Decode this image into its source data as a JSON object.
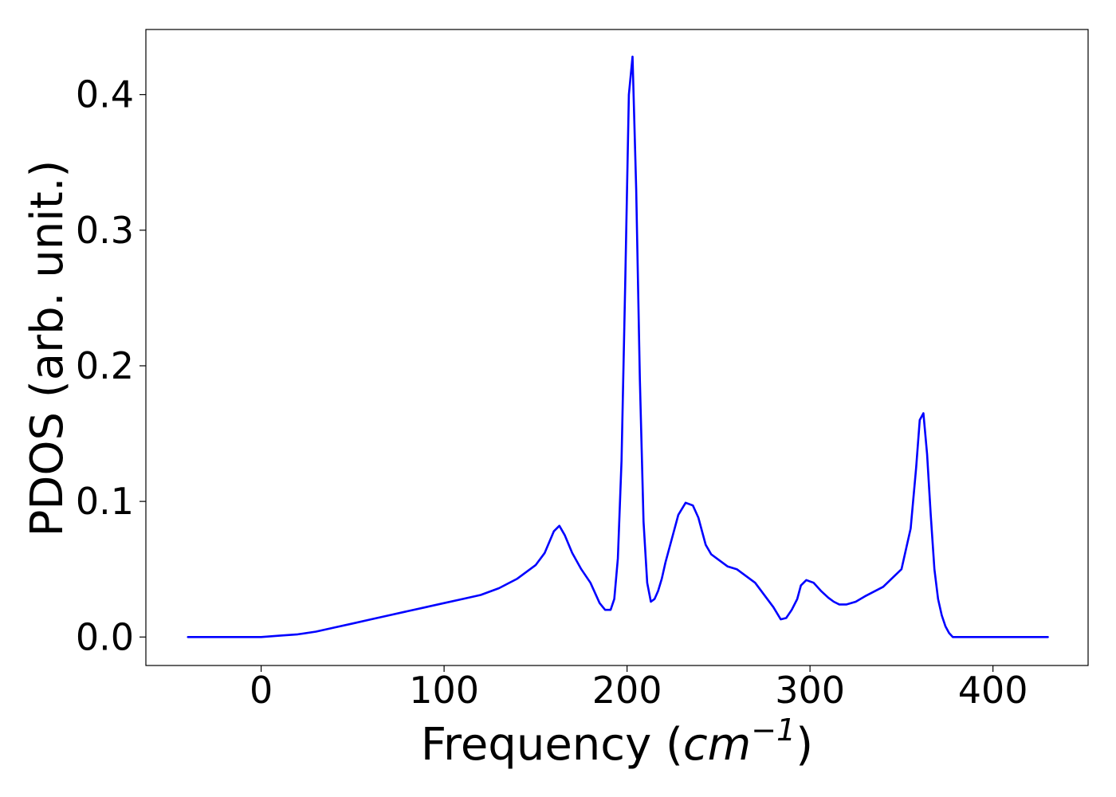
{
  "chart_data": {
    "type": "line",
    "xlabel": "Frequency",
    "xlabel_unit": "cm",
    "xlabel_unit_exponent": "−1",
    "ylabel": "PDOS (arb. unit.)",
    "xlim": [
      -63,
      452
    ],
    "ylim": [
      -0.021,
      0.448
    ],
    "x_ticks": [
      0,
      100,
      200,
      300,
      400
    ],
    "x_tick_labels": [
      "0",
      "100",
      "200",
      "300",
      "400"
    ],
    "y_ticks": [
      0.0,
      0.1,
      0.2,
      0.3,
      0.4
    ],
    "y_tick_labels": [
      "0.0",
      "0.1",
      "0.2",
      "0.3",
      "0.4"
    ],
    "grid": false,
    "line_color": "#0000ff",
    "series": [
      {
        "x": [
          -40,
          0,
          10,
          20,
          30,
          40,
          50,
          60,
          70,
          80,
          90,
          100,
          110,
          120,
          130,
          140,
          150,
          155,
          160,
          163,
          166,
          170,
          175,
          180,
          185,
          188,
          191,
          193,
          195,
          197,
          199,
          201,
          203,
          205,
          207,
          209,
          211,
          213,
          215,
          217,
          219,
          221,
          224,
          228,
          232,
          236,
          239,
          241,
          243,
          246,
          250,
          255,
          260,
          270,
          280,
          284,
          287,
          290,
          293,
          295,
          298,
          302,
          306,
          310,
          313,
          316,
          320,
          325,
          330,
          340,
          350,
          355,
          358,
          360,
          362,
          364,
          366,
          368,
          370,
          372,
          374,
          376,
          378,
          380,
          382,
          385,
          390,
          395,
          400,
          410,
          430
        ],
        "y": [
          0.0,
          0.0,
          0.001,
          0.002,
          0.004,
          0.007,
          0.01,
          0.013,
          0.016,
          0.019,
          0.022,
          0.025,
          0.028,
          0.031,
          0.036,
          0.043,
          0.053,
          0.062,
          0.078,
          0.082,
          0.075,
          0.062,
          0.05,
          0.04,
          0.025,
          0.02,
          0.02,
          0.028,
          0.058,
          0.13,
          0.26,
          0.4,
          0.428,
          0.33,
          0.19,
          0.085,
          0.04,
          0.026,
          0.028,
          0.034,
          0.043,
          0.055,
          0.07,
          0.09,
          0.099,
          0.097,
          0.088,
          0.078,
          0.068,
          0.061,
          0.057,
          0.052,
          0.05,
          0.04,
          0.022,
          0.013,
          0.014,
          0.02,
          0.028,
          0.038,
          0.042,
          0.04,
          0.034,
          0.029,
          0.026,
          0.024,
          0.024,
          0.026,
          0.03,
          0.037,
          0.05,
          0.08,
          0.125,
          0.16,
          0.165,
          0.135,
          0.09,
          0.05,
          0.028,
          0.016,
          0.008,
          0.003,
          0.0,
          0.0,
          0.0,
          0.0,
          0.0,
          0.0,
          0.0,
          0.0,
          0.0
        ]
      }
    ]
  }
}
